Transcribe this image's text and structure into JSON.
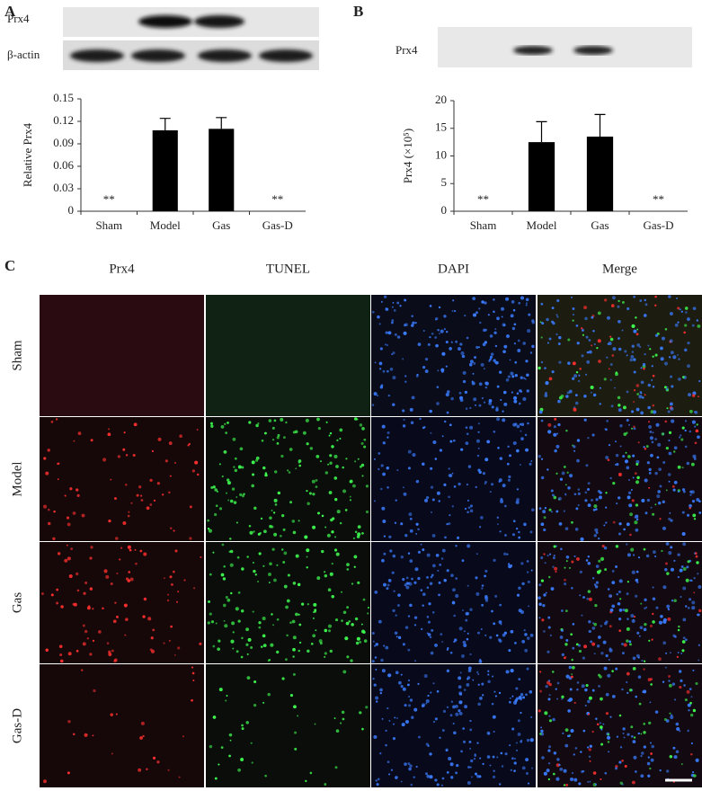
{
  "panels": {
    "a": "A",
    "b": "B",
    "c": "C"
  },
  "blots": {
    "a_labels": [
      "Prx4",
      "β-actin"
    ],
    "b_labels": [
      "Prx4"
    ]
  },
  "chart_data": [
    {
      "type": "bar",
      "y_label": "Relative Prx4",
      "categories": [
        "Sham",
        "Model",
        "Gas",
        "Gas-D"
      ],
      "values": [
        0,
        0.108,
        0.11,
        0
      ],
      "errors": [
        null,
        0.016,
        0.015,
        null
      ],
      "annotations": [
        "**",
        null,
        null,
        "**"
      ],
      "color": "#000000",
      "ylim": [
        0,
        0.15
      ],
      "yticks": [
        0,
        0.03,
        0.06,
        0.09,
        0.12,
        0.15
      ]
    },
    {
      "type": "bar",
      "y_label": "Prx4 (×10⁵)",
      "categories": [
        "Sham",
        "Model",
        "Gas",
        "Gas-D"
      ],
      "values": [
        0,
        12.5,
        13.5,
        0
      ],
      "errors": [
        null,
        3.7,
        4.0,
        null
      ],
      "annotations": [
        "**",
        null,
        null,
        "**"
      ],
      "color": "#000000",
      "ylim": [
        0,
        20
      ],
      "yticks": [
        0,
        5,
        10,
        15,
        20
      ]
    }
  ],
  "microscopy": {
    "columns": [
      "Prx4",
      "TUNEL",
      "DAPI",
      "Merge"
    ],
    "rows": [
      "Sham",
      "Model",
      "Gas",
      "Gas-D"
    ]
  }
}
